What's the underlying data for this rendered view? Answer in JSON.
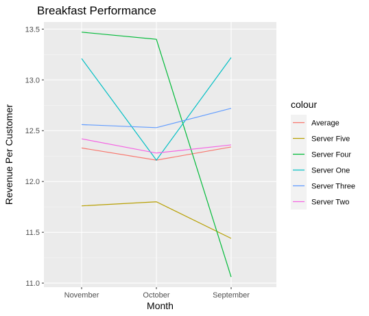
{
  "chart_data": {
    "type": "line",
    "title": "Breakfast Performance",
    "xlabel": "Month",
    "ylabel": "Revenue Per Customer",
    "categories": [
      "November",
      "October",
      "September"
    ],
    "ylim": [
      10.96,
      13.57
    ],
    "yticks": [
      11.0,
      11.5,
      12.0,
      12.5,
      13.0,
      13.5
    ],
    "ytick_labels": [
      "11.0",
      "11.5",
      "12.0",
      "12.5",
      "13.0",
      "13.5"
    ],
    "grid": true,
    "legend_title": "colour",
    "legend_position": "right",
    "series": [
      {
        "name": "Average",
        "color": "#F8766D",
        "values": [
          12.33,
          12.21,
          12.34
        ]
      },
      {
        "name": "Server Five",
        "color": "#B79F00",
        "values": [
          11.76,
          11.8,
          11.44
        ]
      },
      {
        "name": "Server Four",
        "color": "#00BA38",
        "values": [
          13.47,
          13.4,
          11.06
        ]
      },
      {
        "name": "Server One",
        "color": "#00BFC4",
        "values": [
          13.21,
          12.21,
          13.22
        ]
      },
      {
        "name": "Server Three",
        "color": "#619CFF",
        "values": [
          12.56,
          12.53,
          12.72
        ]
      },
      {
        "name": "Server Two",
        "color": "#F564E3",
        "values": [
          12.42,
          12.28,
          12.36
        ]
      }
    ]
  }
}
